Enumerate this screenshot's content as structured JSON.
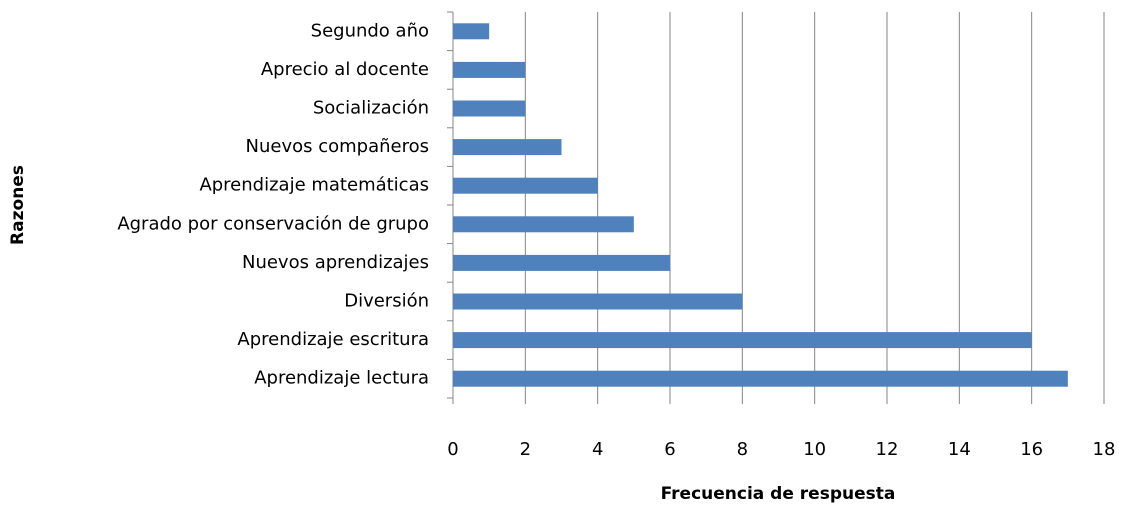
{
  "chart_data": {
    "type": "barh",
    "categories": [
      "Segundo año",
      "Aprecio al docente",
      "Socialización",
      "Nuevos compañeros",
      "Aprendizaje matemáticas",
      "Agrado por conservación de grupo",
      "Nuevos aprendizajes",
      "Diversión",
      "Aprendizaje escritura",
      "Aprendizaje lectura"
    ],
    "values": [
      1,
      2,
      2,
      3,
      4,
      5,
      6,
      8,
      16,
      17
    ],
    "color": "#4f81bd",
    "xlabel": "Frecuencia de respuesta",
    "ylabel": "Razones",
    "xlim": [
      0,
      18
    ],
    "xticks": [
      0,
      2,
      4,
      6,
      8,
      10,
      12,
      14,
      16,
      18
    ],
    "grid": true
  }
}
